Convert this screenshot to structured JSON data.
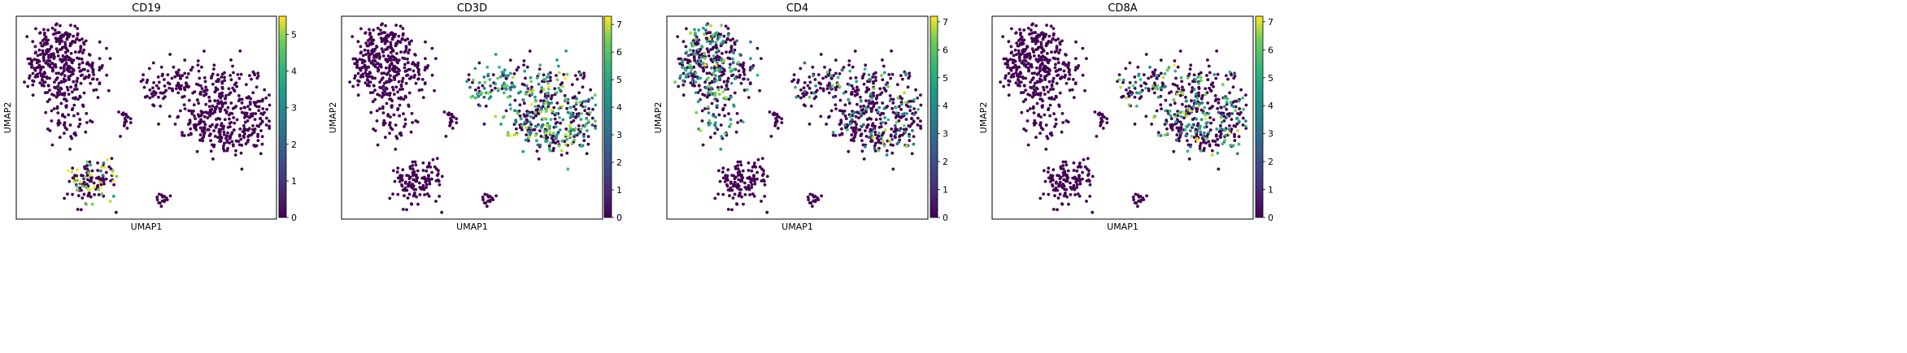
{
  "chart_data": [
    {
      "type": "scatter",
      "title": "CD19",
      "xlabel": "UMAP1",
      "ylabel": "UMAP2",
      "colorbar": {
        "range": [
          0,
          5.5
        ],
        "ticks": [
          0,
          1,
          2,
          3,
          4,
          5
        ],
        "tick_labels": [
          "0",
          "1",
          "2",
          "3",
          "4",
          "5"
        ],
        "colormap": "viridis"
      },
      "expression_clusters": [
        {
          "region": "small cluster bottom-left",
          "level": 4.5,
          "share": 0.35
        }
      ]
    },
    {
      "type": "scatter",
      "title": "CD3D",
      "xlabel": "UMAP1",
      "ylabel": "UMAP2",
      "colorbar": {
        "range": [
          0,
          7.3
        ],
        "ticks": [
          0,
          1,
          2,
          3,
          4,
          5,
          6,
          7
        ],
        "tick_labels": [
          "0",
          "1",
          "2",
          "3",
          "4",
          "5",
          "6",
          "7"
        ],
        "colormap": "viridis"
      },
      "expression_clusters": [
        {
          "region": "large cluster right",
          "level": 4.5,
          "share": 0.55
        }
      ]
    },
    {
      "type": "scatter",
      "title": "CD4",
      "xlabel": "UMAP1",
      "ylabel": "UMAP2",
      "colorbar": {
        "range": [
          0,
          7.2
        ],
        "ticks": [
          0,
          1,
          2,
          3,
          4,
          5,
          6,
          7
        ],
        "tick_labels": [
          "0",
          "1",
          "2",
          "3",
          "4",
          "5",
          "6",
          "7"
        ],
        "colormap": "viridis"
      },
      "expression_clusters": [
        {
          "region": "large cluster left",
          "level": 4.0,
          "share": 0.4
        },
        {
          "region": "large cluster right",
          "level": 4.0,
          "share": 0.25
        }
      ]
    },
    {
      "type": "scatter",
      "title": "CD8A",
      "xlabel": "UMAP1",
      "ylabel": "UMAP2",
      "colorbar": {
        "range": [
          0,
          7.2
        ],
        "ticks": [
          0,
          1,
          2,
          3,
          4,
          5,
          6,
          7
        ],
        "tick_labels": [
          "0",
          "1",
          "2",
          "3",
          "4",
          "5",
          "6",
          "7"
        ],
        "colormap": "viridis"
      },
      "expression_clusters": [
        {
          "region": "large cluster right",
          "level": 4.5,
          "share": 0.3
        }
      ]
    }
  ]
}
